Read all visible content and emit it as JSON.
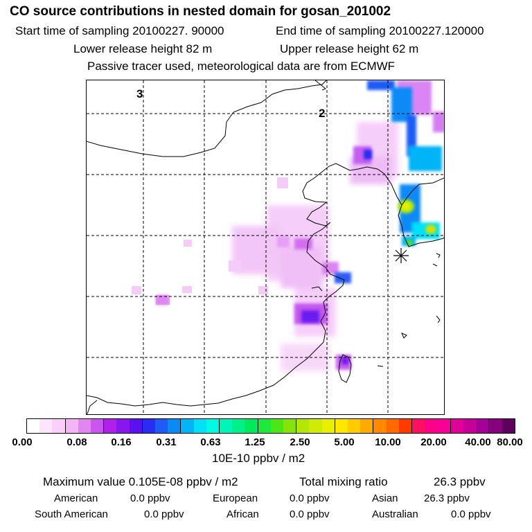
{
  "header": {
    "title": "CO  source contributions in nested domain for gosan_201002",
    "start_label": "Start time of sampling 20100227. 90000",
    "end_label": "End time of sampling 20100227.120000",
    "lower_label": "Lower release height   82 m",
    "upper_label": "Upper release height   62 m",
    "tracer_label": "Passive tracer used, meteorological data are from ECMWF"
  },
  "map": {
    "grid_labels": [
      "3",
      "2"
    ],
    "receptor_marker": "asterisk-icon"
  },
  "legend": {
    "tick_labels": [
      "0.00",
      "0.08",
      "0.16",
      "0.31",
      "0.63",
      "1.25",
      "2.50",
      "5.00",
      "10.00",
      "20.00",
      "40.00",
      "80.00"
    ],
    "unit": "10E-10 ppbv / m2",
    "colors": [
      "#ffffff",
      "#fde6fd",
      "#fad0fb",
      "#f5b3f8",
      "#e485f4",
      "#cc55ef",
      "#b020ea",
      "#8a16ee",
      "#5b10f0",
      "#2a2cf3",
      "#1f5cf5",
      "#0b8af6",
      "#05b4f7",
      "#03e0f8",
      "#00fae4",
      "#00f6b8",
      "#00f08a",
      "#00e85c",
      "#1ee83a",
      "#4ce614",
      "#86e40a",
      "#b2e808",
      "#d0ec06",
      "#e8f000",
      "#ffe800",
      "#ffcc00",
      "#ffaa00",
      "#ff8a00",
      "#ff6a00",
      "#ff3a00",
      "#ff1060",
      "#ff0088",
      "#f80098",
      "#e0009a",
      "#c8009a",
      "#a6009a",
      "#86007e",
      "#5e005e"
    ]
  },
  "stats": {
    "max_label": "Maximum value  0.105E-08 ppbv / m2",
    "total_label": "Total mixing ratio",
    "total_value": "26.3 ppbv",
    "regions": [
      {
        "name": "American",
        "value": "0.0 ppbv"
      },
      {
        "name": "European",
        "value": "0.0 ppbv"
      },
      {
        "name": "Asian",
        "value": "26.3 ppbv"
      },
      {
        "name": "South American",
        "value": "0.0 ppbv"
      },
      {
        "name": "African",
        "value": "0.0 ppbv"
      },
      {
        "name": "Australian",
        "value": "0.0 ppbv"
      }
    ]
  }
}
